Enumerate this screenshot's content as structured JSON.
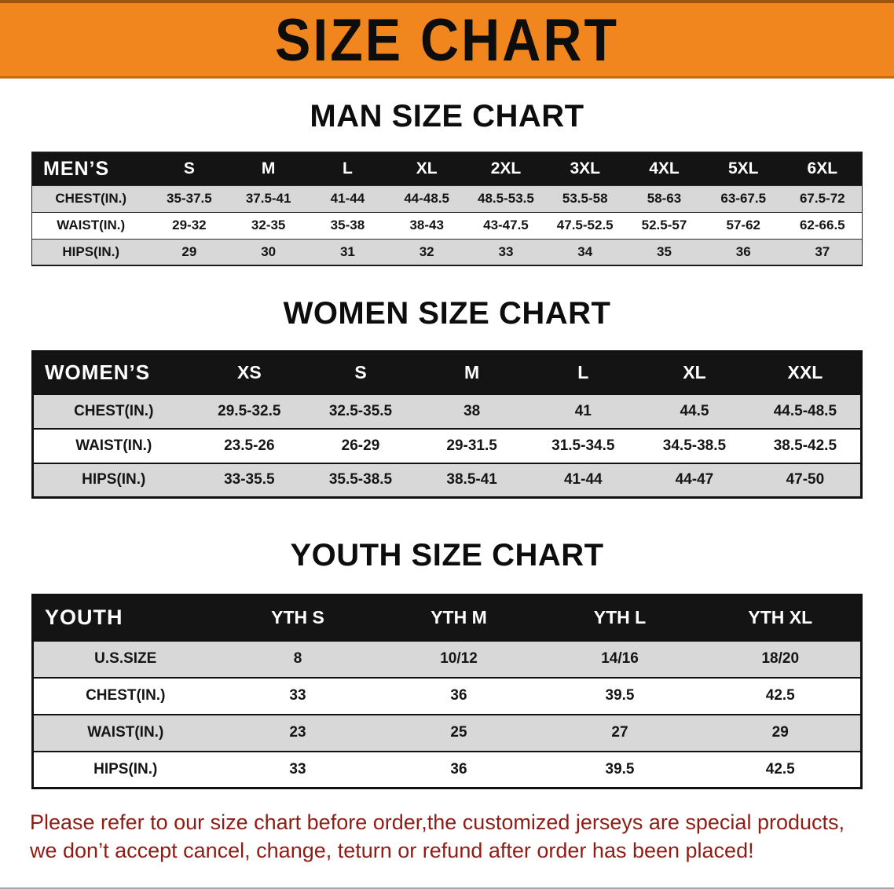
{
  "banner": {
    "title": "SIZE CHART"
  },
  "sections": [
    {
      "heading": "MAN SIZE CHART",
      "table": {
        "label": "MEN’S",
        "columns": [
          "S",
          "M",
          "L",
          "XL",
          "2XL",
          "3XL",
          "4XL",
          "5XL",
          "6XL"
        ],
        "rows": [
          {
            "label": "CHEST(IN.)",
            "values": [
              "35-37.5",
              "37.5-41",
              "41-44",
              "44-48.5",
              "48.5-53.5",
              "53.5-58",
              "58-63",
              "63-67.5",
              "67.5-72"
            ]
          },
          {
            "label": "WAIST(IN.)",
            "values": [
              "29-32",
              "32-35",
              "35-38",
              "38-43",
              "43-47.5",
              "47.5-52.5",
              "52.5-57",
              "57-62",
              "62-66.5"
            ]
          },
          {
            "label": "HIPS(IN.)",
            "values": [
              "29",
              "30",
              "31",
              "32",
              "33",
              "34",
              "35",
              "36",
              "37"
            ]
          }
        ]
      }
    },
    {
      "heading": "WOMEN SIZE CHART",
      "table": {
        "label": "WOMEN’S",
        "columns": [
          "XS",
          "S",
          "M",
          "L",
          "XL",
          "XXL"
        ],
        "rows": [
          {
            "label": "CHEST(IN.)",
            "values": [
              "29.5-32.5",
              "32.5-35.5",
              "38",
              "41",
              "44.5",
              "44.5-48.5"
            ]
          },
          {
            "label": "WAIST(IN.)",
            "values": [
              "23.5-26",
              "26-29",
              "29-31.5",
              "31.5-34.5",
              "34.5-38.5",
              "38.5-42.5"
            ]
          },
          {
            "label": "HIPS(IN.)",
            "values": [
              "33-35.5",
              "35.5-38.5",
              "38.5-41",
              "41-44",
              "44-47",
              "47-50"
            ]
          }
        ]
      }
    },
    {
      "heading": "YOUTH SIZE CHART",
      "table": {
        "label": "YOUTH",
        "columns": [
          "YTH S",
          "YTH M",
          "YTH L",
          "YTH XL"
        ],
        "rows": [
          {
            "label": "U.S.SIZE",
            "values": [
              "8",
              "10/12",
              "14/16",
              "18/20"
            ]
          },
          {
            "label": "CHEST(IN.)",
            "values": [
              "33",
              "36",
              "39.5",
              "42.5"
            ]
          },
          {
            "label": "WAIST(IN.)",
            "values": [
              "23",
              "25",
              "27",
              "29"
            ]
          },
          {
            "label": "HIPS(IN.)",
            "values": [
              "33",
              "36",
              "39.5",
              "42.5"
            ]
          }
        ]
      }
    }
  ],
  "footer": {
    "line1": "Please refer to our size chart before order,the customized jerseys are special products,",
    "line2": "we don’t accept cancel, change, teturn or refund after order has been placed!"
  },
  "colors": {
    "banner_orange": "#f1861e",
    "header_black": "#141414",
    "row_gray": "#d8d8d8",
    "footer_red": "#8f1d15"
  }
}
